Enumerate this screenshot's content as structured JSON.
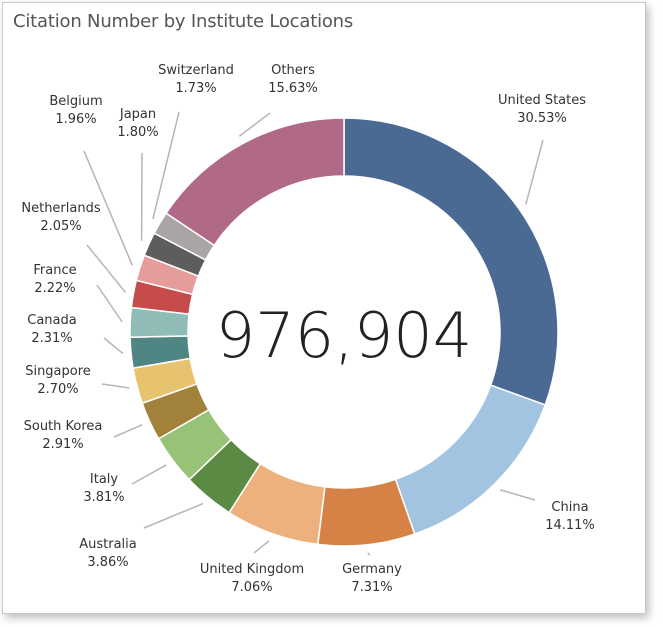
{
  "chart_data": {
    "type": "pie",
    "title": "Citation Number by Institute Locations",
    "center_label": "976,904",
    "slices": [
      {
        "label": "United States",
        "percent_text": "30.53%",
        "value": 30.53,
        "color": "#4a6a94"
      },
      {
        "label": "China",
        "percent_text": "14.11%",
        "value": 14.11,
        "color": "#a2c4e0"
      },
      {
        "label": "Germany",
        "percent_text": "7.31%",
        "value": 7.31,
        "color": "#d68145"
      },
      {
        "label": "United Kingdom",
        "percent_text": "7.06%",
        "value": 7.06,
        "color": "#edb17e"
      },
      {
        "label": "Australia",
        "percent_text": "3.86%",
        "value": 3.86,
        "color": "#5b8a45"
      },
      {
        "label": "Italy",
        "percent_text": "3.81%",
        "value": 3.81,
        "color": "#97c278"
      },
      {
        "label": "South Korea",
        "percent_text": "2.91%",
        "value": 2.91,
        "color": "#a2823b"
      },
      {
        "label": "Singapore",
        "percent_text": "2.70%",
        "value": 2.7,
        "color": "#e7c370"
      },
      {
        "label": "Canada",
        "percent_text": "2.31%",
        "value": 2.31,
        "color": "#4f8683"
      },
      {
        "label": "France",
        "percent_text": "2.22%",
        "value": 2.22,
        "color": "#8fbcb6"
      },
      {
        "label": "Netherlands",
        "percent_text": "2.05%",
        "value": 2.05,
        "color": "#c64b4b"
      },
      {
        "label": "Belgium",
        "percent_text": "1.96%",
        "value": 1.96,
        "color": "#e79c9c"
      },
      {
        "label": "Japan",
        "percent_text": "1.80%",
        "value": 1.8,
        "color": "#5d5d5d"
      },
      {
        "label": "Switzerland",
        "percent_text": "1.73%",
        "value": 1.73,
        "color": "#aaa4a4"
      },
      {
        "label": "Others",
        "percent_text": "15.63%",
        "value": 15.63,
        "color": "#b06986"
      }
    ]
  }
}
